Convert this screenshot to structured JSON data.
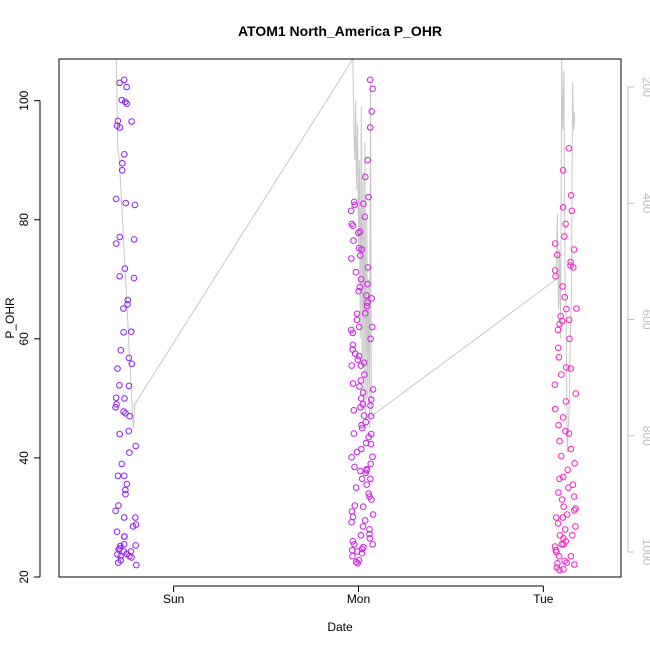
{
  "chart_data": {
    "type": "scatter",
    "title": "ATOM1 North_America P_OHR",
    "xlabel": "Date",
    "ylabel": "P_OHR",
    "ylim": [
      20,
      107
    ],
    "y_ticks": [
      20,
      40,
      60,
      80,
      100
    ],
    "x_ticks": [
      "Sun",
      "Mon",
      "Tue"
    ],
    "secondary_axis": {
      "side": "right",
      "ticks": [
        200,
        400,
        600,
        800,
        1000
      ],
      "reversed": true,
      "color": "#bdbdbd"
    },
    "colors": {
      "series_start": "#7f1fff",
      "series_mid": "#c41cf0",
      "series_end": "#ff1ec8",
      "overlay_line": "#c8c8c8"
    },
    "clusters": [
      {
        "day_pos": 0.3,
        "points": [
          99.8,
          99.5,
          95.8,
          95.5,
          91.0,
          82.8,
          76.0,
          70.2,
          65.8,
          61.1,
          58.1,
          55.8,
          52.1,
          50.1,
          47.5,
          44.0,
          40.9,
          37.0,
          35.6,
          34.6,
          32.0,
          31.1,
          30.0,
          28.8,
          27.6,
          26.8,
          25.3,
          24.6,
          24.3,
          23.9,
          23.5,
          22.8,
          22.4,
          22.0,
          103.5,
          103.0,
          102.3,
          100.1,
          96.6,
          96.5,
          89.5,
          88.3,
          83.5,
          82.5,
          77.1,
          76.7,
          71.8,
          70.5,
          66.5,
          65.1,
          61.2,
          56.8,
          55.0,
          52.2,
          50.0,
          49.0,
          48.5,
          47.8,
          47.0,
          44.5,
          42.0,
          39.0,
          37.0,
          33.9,
          30.0,
          28.5,
          26.8,
          25.5,
          25.2,
          24.8,
          24.3,
          23.8,
          23.5,
          23.3
        ],
        "line": [
          107,
          92,
          90,
          85,
          80,
          75,
          70,
          65,
          60,
          55,
          50,
          45,
          49
        ]
      },
      {
        "day_pos": 1.58,
        "points": [
          103.5,
          102.0,
          98.2,
          95.5,
          90.0,
          87.2,
          82.7,
          79.3,
          77.8,
          75.2,
          71.2,
          68.7,
          67.3,
          66.1,
          64.2,
          62.0,
          61.5,
          57.1,
          56.0,
          55.5,
          52.5,
          51.5,
          50.0,
          48.8,
          47.1,
          45.5,
          44.1,
          43.5,
          42.3,
          41.0,
          40.1,
          38.5,
          38.1,
          37.9,
          37.5,
          36.5,
          35.0,
          33.5,
          32.0,
          31.0,
          30.1,
          29.2,
          28.5,
          27.2,
          26.5,
          25.5,
          24.7,
          24.5,
          24.3,
          24.0,
          23.5,
          22.8,
          22.5,
          22.3,
          83.8,
          83.0,
          82.5,
          81.5,
          80.5,
          79.0,
          78.0,
          76.5,
          75.0,
          74.0,
          73.5,
          72.0,
          70.0,
          69.2,
          68.0,
          66.8,
          65.5,
          64.3,
          63.2,
          62.0,
          61.0,
          60.0,
          59.0,
          58.2,
          57.5,
          56.5,
          55.5,
          54.0,
          53.0,
          52.0,
          51.0,
          49.8,
          49.0,
          48.5,
          48.0,
          47.0,
          46.0,
          45.0,
          44.0,
          42.5,
          41.5,
          40.2,
          39.0,
          37.8,
          36.5,
          35.5,
          34.0,
          33.0,
          31.8,
          30.5,
          29.5,
          28.0,
          27.0,
          26.0,
          25.5,
          25.0
        ],
        "line": [
          107,
          95,
          90,
          100,
          85,
          96,
          75,
          90,
          60,
          99,
          55,
          88,
          48,
          93,
          45,
          80,
          50,
          70,
          45,
          103,
          47
        ]
      },
      {
        "day_pos": 2.68,
        "points": [
          92.0,
          88.3,
          84.1,
          81.5,
          79.3,
          77.2,
          75.0,
          72.3,
          70.5,
          68.8,
          67.0,
          65.1,
          63.2,
          61.5,
          60.0,
          58.5,
          56.9,
          55.2,
          54.0,
          52.3,
          50.8,
          49.5,
          48.2,
          46.8,
          45.5,
          44.1,
          42.8,
          41.5,
          40.3,
          39.1,
          38.0,
          36.8,
          35.5,
          34.2,
          33.0,
          31.8,
          31.2,
          30.5,
          30.0,
          29.0,
          28.0,
          27.0,
          26.5,
          26.0,
          25.5,
          25.1,
          24.5,
          23.5,
          22.7,
          22.4,
          22.1,
          21.6,
          21.3,
          21.2,
          82.1,
          76.0,
          74.1,
          72.9,
          72.0,
          71.5,
          65.0,
          63.8,
          63.0,
          62.5,
          55.0,
          44.5,
          36.5,
          35.0,
          33.5,
          31.5,
          30.0,
          28.5,
          27.0,
          25.5,
          24.2,
          23.5,
          22.3
        ],
        "line": [
          70,
          81,
          65,
          75,
          60,
          107,
          95,
          105,
          70,
          64,
          41,
          45,
          49,
          60,
          68,
          103,
          95,
          98
        ]
      }
    ]
  }
}
